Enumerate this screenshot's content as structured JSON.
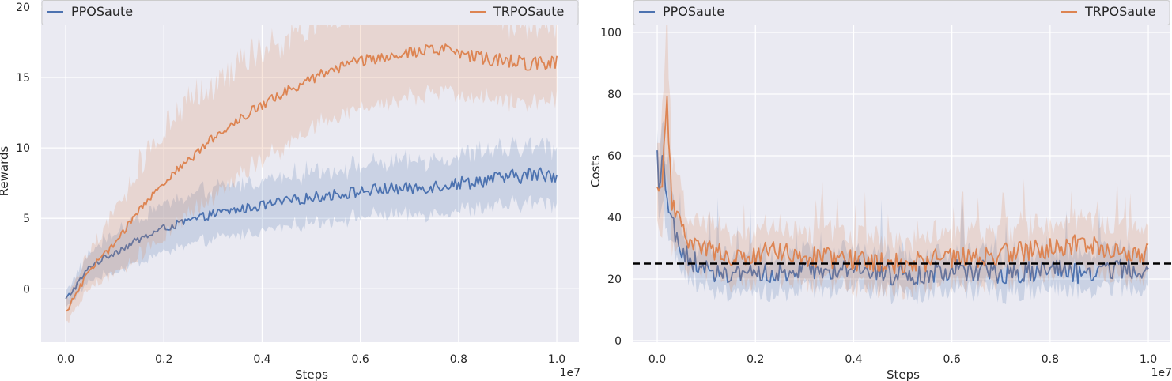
{
  "chart_data": [
    {
      "type": "line",
      "xlabel": "Steps",
      "ylabel": "Rewards",
      "x_offset_label": "1e7",
      "xlim": [
        -0.05,
        1.045
      ],
      "ylim": [
        -3.8,
        20.5
      ],
      "xticks": [
        0.0,
        0.2,
        0.4,
        0.6,
        0.8,
        1.0
      ],
      "xtick_labels": [
        "0.0",
        "0.2",
        "0.4",
        "0.6",
        "0.8",
        "1.0"
      ],
      "yticks": [
        0,
        5,
        10,
        15,
        20
      ],
      "ytick_labels": [
        "0",
        "5",
        "10",
        "15",
        "20"
      ],
      "grid": true,
      "legend_placement": "top, spanning axes",
      "series": [
        {
          "name": "PPOSaute",
          "color": "#4c72b0",
          "x": [
            0.0,
            0.05,
            0.1,
            0.15,
            0.2,
            0.25,
            0.3,
            0.35,
            0.4,
            0.45,
            0.5,
            0.55,
            0.6,
            0.65,
            0.7,
            0.75,
            0.8,
            0.85,
            0.9,
            0.95,
            1.0
          ],
          "y": [
            -0.8,
            1.6,
            2.6,
            3.5,
            4.3,
            4.8,
            5.3,
            5.6,
            5.9,
            6.2,
            6.5,
            6.7,
            6.9,
            7.1,
            7.1,
            7.3,
            7.5,
            7.7,
            7.9,
            8.1,
            8.1
          ],
          "band_width": [
            0.6,
            1.0,
            1.4,
            1.6,
            1.7,
            1.7,
            1.8,
            1.8,
            1.8,
            1.8,
            1.8,
            1.8,
            1.8,
            1.8,
            1.9,
            1.9,
            1.9,
            2.0,
            2.0,
            2.0,
            2.0
          ]
        },
        {
          "name": "TRPOSaute",
          "color": "#dd8452",
          "x": [
            0.0,
            0.05,
            0.1,
            0.15,
            0.2,
            0.25,
            0.3,
            0.35,
            0.4,
            0.45,
            0.5,
            0.55,
            0.6,
            0.65,
            0.7,
            0.75,
            0.8,
            0.85,
            0.9,
            0.95,
            1.0
          ],
          "y": [
            -1.7,
            1.4,
            3.2,
            5.6,
            7.6,
            9.1,
            10.7,
            12.0,
            13.1,
            14.0,
            14.9,
            15.7,
            16.2,
            16.5,
            16.8,
            17.0,
            16.8,
            16.4,
            16.2,
            16.0,
            16.1
          ],
          "band_width": [
            0.8,
            1.3,
            2.2,
            3.2,
            3.8,
            4.0,
            4.0,
            4.0,
            3.9,
            3.8,
            3.6,
            3.5,
            3.4,
            3.3,
            3.2,
            3.1,
            3.0,
            2.9,
            2.8,
            2.7,
            2.6
          ]
        }
      ]
    },
    {
      "type": "line",
      "xlabel": "Steps",
      "ylabel": "Costs",
      "x_offset_label": "1e7",
      "xlim": [
        -0.05,
        1.045
      ],
      "ylim": [
        -0.5,
        110.5
      ],
      "xticks": [
        0.0,
        0.2,
        0.4,
        0.6,
        0.8,
        1.0
      ],
      "xtick_labels": [
        "0.0",
        "0.2",
        "0.4",
        "0.6",
        "0.8",
        "1.0"
      ],
      "yticks": [
        0,
        20,
        40,
        60,
        80,
        100
      ],
      "ytick_labels": [
        "0",
        "20",
        "40",
        "60",
        "80",
        "100"
      ],
      "grid": true,
      "legend_placement": "top, spanning axes",
      "threshold": {
        "y": 25,
        "color": "#000000",
        "style": "dashed"
      },
      "series": [
        {
          "name": "PPOSaute",
          "color": "#4c72b0",
          "x": [
            0.0,
            0.005,
            0.01,
            0.02,
            0.03,
            0.05,
            0.07,
            0.1,
            0.15,
            0.2,
            0.25,
            0.3,
            0.35,
            0.4,
            0.45,
            0.5,
            0.55,
            0.6,
            0.65,
            0.7,
            0.75,
            0.8,
            0.85,
            0.9,
            0.95,
            1.0
          ],
          "y": [
            60,
            48,
            62,
            45,
            38,
            29,
            26,
            23,
            22,
            21,
            22,
            23,
            23,
            24,
            22,
            21,
            22,
            23,
            23,
            22,
            22,
            23,
            22,
            22,
            23,
            23
          ],
          "band_width": [
            8,
            10,
            14,
            10,
            8,
            6,
            6,
            6,
            6,
            6,
            6,
            6,
            6,
            6,
            6,
            6,
            6,
            6,
            6,
            6,
            6,
            6,
            6,
            6,
            6,
            6
          ]
        },
        {
          "name": "TRPOSaute",
          "color": "#dd8452",
          "x": [
            0.0,
            0.005,
            0.01,
            0.02,
            0.03,
            0.05,
            0.07,
            0.1,
            0.15,
            0.2,
            0.25,
            0.3,
            0.35,
            0.4,
            0.45,
            0.5,
            0.55,
            0.6,
            0.65,
            0.7,
            0.75,
            0.8,
            0.85,
            0.9,
            0.95,
            1.0
          ],
          "y": [
            48,
            47,
            52,
            78,
            45,
            35,
            32,
            30,
            27,
            28,
            29,
            27,
            27,
            26,
            25,
            25,
            26,
            27,
            27,
            28,
            29,
            30,
            31,
            31,
            29,
            28
          ],
          "band_width": [
            12,
            14,
            18,
            22,
            14,
            10,
            8,
            8,
            8,
            8,
            8,
            8,
            8,
            8,
            8,
            8,
            8,
            8,
            8,
            8,
            8,
            8,
            8,
            8,
            8,
            8
          ]
        }
      ]
    }
  ]
}
